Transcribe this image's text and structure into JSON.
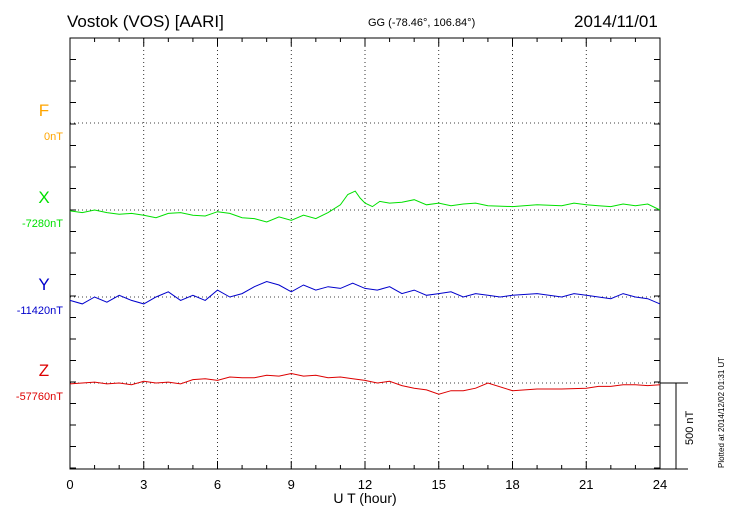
{
  "header": {
    "station": "Vostok (VOS)  [AARI]",
    "coords": "GG (-78.46°, 106.84°)",
    "date": "2014/11/01"
  },
  "side_note": "Plotted at 2014/12/02 01:31  UT",
  "scale_label": "500 nT",
  "chart_data": {
    "type": "line",
    "xlabel": "U T (hour)",
    "xlim": [
      0,
      24
    ],
    "x_ticks": [
      "0",
      "3",
      "6",
      "9",
      "12",
      "15",
      "18",
      "21",
      "24"
    ],
    "scale_bar_nT": 500,
    "series": [
      {
        "name": "F",
        "baseline_label": "0nT",
        "color": "#ffa500",
        "x": [],
        "values": []
      },
      {
        "name": "X",
        "baseline_label": "-7280nT",
        "color": "#00e000",
        "x": [
          0,
          0.5,
          1,
          1.5,
          2,
          2.5,
          3,
          3.5,
          4,
          4.5,
          5,
          5.5,
          6,
          6.5,
          7,
          7.5,
          8,
          8.5,
          9,
          9.5,
          10,
          10.5,
          11,
          11.3,
          11.6,
          11.8,
          12,
          12.3,
          12.6,
          13,
          13.5,
          14,
          14.5,
          15,
          15.5,
          16,
          16.5,
          17,
          18,
          19,
          20,
          20.5,
          21,
          21.5,
          22,
          22.5,
          23,
          23.5,
          24
        ],
        "values": [
          -7285,
          -7295,
          -7280,
          -7295,
          -7305,
          -7300,
          -7310,
          -7325,
          -7300,
          -7295,
          -7310,
          -7315,
          -7290,
          -7300,
          -7325,
          -7330,
          -7350,
          -7320,
          -7340,
          -7310,
          -7330,
          -7295,
          -7250,
          -7190,
          -7170,
          -7210,
          -7240,
          -7260,
          -7230,
          -7240,
          -7235,
          -7220,
          -7250,
          -7240,
          -7255,
          -7245,
          -7240,
          -7255,
          -7260,
          -7250,
          -7255,
          -7240,
          -7250,
          -7255,
          -7260,
          -7245,
          -7255,
          -7245,
          -7280
        ]
      },
      {
        "name": "Y",
        "baseline_label": "-11420nT",
        "color": "#0000cc",
        "x": [
          0,
          0.5,
          1,
          1.5,
          2,
          2.5,
          3,
          3.5,
          4,
          4.5,
          5,
          5.5,
          6,
          6.5,
          7,
          7.5,
          8,
          8.5,
          9,
          9.5,
          10,
          10.5,
          11,
          11.5,
          12,
          12.5,
          13,
          13.5,
          14,
          14.5,
          15,
          15.5,
          16,
          16.5,
          17,
          17.5,
          18,
          19,
          20,
          20.5,
          21,
          21.5,
          22,
          22.5,
          23,
          23.5,
          24
        ],
        "values": [
          -11440,
          -11460,
          -11420,
          -11450,
          -11410,
          -11440,
          -11460,
          -11420,
          -11390,
          -11440,
          -11410,
          -11440,
          -11380,
          -11420,
          -11400,
          -11360,
          -11330,
          -11350,
          -11390,
          -11350,
          -11380,
          -11360,
          -11370,
          -11340,
          -11370,
          -11380,
          -11360,
          -11400,
          -11380,
          -11410,
          -11400,
          -11390,
          -11420,
          -11400,
          -11410,
          -11420,
          -11410,
          -11400,
          -11420,
          -11400,
          -11410,
          -11420,
          -11430,
          -11400,
          -11420,
          -11430,
          -11460
        ]
      },
      {
        "name": "Z",
        "baseline_label": "-57760nT",
        "color": "#dd0000",
        "x": [
          0,
          0.5,
          1,
          1.5,
          2,
          2.5,
          3,
          3.5,
          4,
          4.5,
          5,
          5.5,
          6,
          6.5,
          7,
          7.5,
          8,
          8.5,
          9,
          9.5,
          10,
          10.5,
          11,
          11.5,
          12,
          12.5,
          13,
          13.5,
          14,
          14.5,
          15,
          15.5,
          16,
          16.5,
          17,
          18,
          19,
          20,
          21,
          21.5,
          22,
          22.5,
          23,
          23.5,
          24
        ],
        "values": [
          -57765,
          -57760,
          -57755,
          -57765,
          -57760,
          -57770,
          -57750,
          -57760,
          -57755,
          -57765,
          -57740,
          -57735,
          -57745,
          -57725,
          -57730,
          -57730,
          -57715,
          -57720,
          -57705,
          -57720,
          -57715,
          -57730,
          -57725,
          -57735,
          -57745,
          -57760,
          -57750,
          -57775,
          -57790,
          -57800,
          -57825,
          -57805,
          -57805,
          -57790,
          -57760,
          -57805,
          -57795,
          -57795,
          -57790,
          -57780,
          -57780,
          -57770,
          -57770,
          -57775,
          -57770
        ]
      }
    ]
  }
}
